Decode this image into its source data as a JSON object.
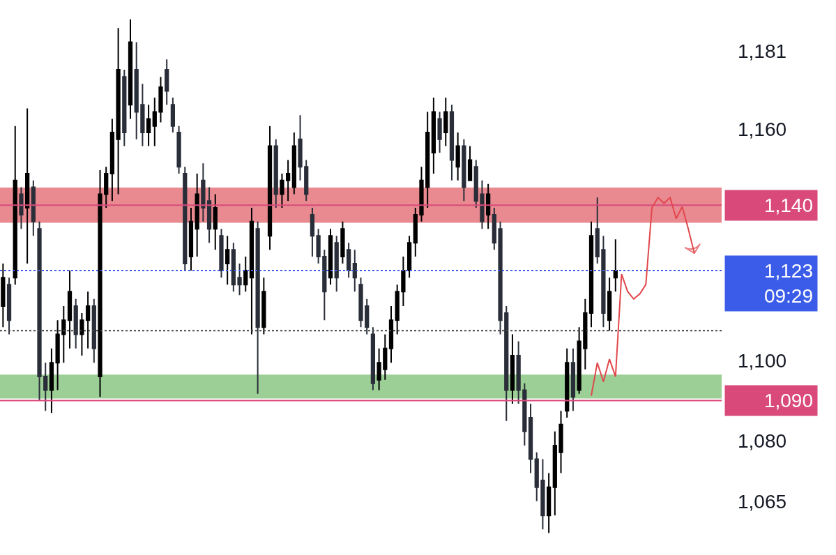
{
  "chart_data": {
    "type": "candlestick",
    "categories": [
      null,
      null,
      null,
      null,
      null,
      null,
      null,
      null,
      null,
      null,
      null,
      null,
      null,
      null,
      null,
      null,
      null,
      null,
      null,
      null,
      null,
      null,
      null,
      null,
      null,
      null,
      null,
      null,
      null,
      null,
      null,
      null,
      null,
      null,
      null,
      null,
      null,
      null,
      null,
      null,
      null,
      null,
      null,
      null,
      null,
      null,
      null,
      null,
      null,
      null,
      null,
      null,
      null,
      null,
      null,
      null,
      null,
      null,
      null,
      null,
      null,
      null,
      null,
      null,
      null,
      null,
      null,
      null,
      null,
      null,
      null,
      null,
      null,
      null,
      null,
      null,
      null,
      null,
      null,
      null,
      null,
      null,
      null,
      null,
      null,
      null,
      null,
      null,
      null,
      null,
      null,
      null,
      null,
      null,
      null,
      null,
      null,
      null,
      null,
      null,
      null,
      null,
      null,
      null,
      null,
      null,
      null,
      null,
      null,
      null,
      null,
      null,
      null,
      null,
      null,
      null,
      null,
      null,
      null
    ],
    "colors": [
      "#000000",
      "#2a2e39",
      "#000000",
      "#2a2e39",
      "#000000",
      "#2a2e39",
      "#2a2e39",
      "#2a2e39",
      "#000000",
      "#000000",
      "#000000",
      "#000000",
      "#2a2e39",
      "#000000",
      "#000000",
      "#2a2e39",
      "#000000",
      "#000000",
      "#000000",
      "#000000",
      "#2a2e39",
      "#000000",
      "#2a2e39",
      "#2a2e39",
      "#000000",
      "#000000",
      "#000000",
      "#2a2e39",
      "#2a2e39",
      "#2a2e39",
      "#2a2e39",
      "#000000",
      "#000000",
      "#2a2e39",
      "#2a2e39",
      "#000000",
      "#2a2e39",
      "#000000",
      "#2a2e39",
      "#2a2e39",
      "#000000",
      "#000000",
      "#2a2e39",
      "#000000",
      "#000000",
      "#2a2e39",
      "#000000",
      "#000000",
      "#000000",
      "#2a2e39",
      "#2a2e39",
      "#2a2e39",
      "#2a2e39",
      "#2a2e39",
      "#000000",
      "#2a2e39",
      "#000000",
      "#2a2e39",
      "#2a2e39",
      "#2a2e39",
      "#2a2e39",
      "#2a2e39",
      "#000000",
      "#000000",
      "#000000",
      "#000000",
      "#000000",
      "#000000",
      "#000000",
      "#000000",
      "#000000",
      "#000000",
      "#2a2e39",
      "#000000",
      "#2a2e39",
      "#000000",
      "#2a2e39",
      "#000000",
      "#2a2e39",
      "#2a2e39",
      "#000000",
      "#2a2e39",
      "#2a2e39",
      "#2a2e39",
      "#000000",
      "#2a2e39",
      "#2a2e39",
      "#2a2e39",
      "#2a2e39",
      "#2a2e39",
      "#000000",
      "#000000",
      "#000000",
      "#000000",
      "#2a2e39",
      "#000000",
      "#000000",
      "#000000",
      "#2a2e39",
      "#2a2e39",
      "#000000",
      "#000000",
      null,
      null,
      null,
      null,
      null,
      null,
      null,
      null,
      null,
      null,
      null,
      null,
      null,
      null,
      null,
      null,
      null
    ],
    "ohlc": [
      [
        1113.9,
        1124.8,
        1108.5,
        1121.2
      ],
      [
        1119.4,
        1121.2,
        1106.7,
        1110.3
      ],
      [
        1121.2,
        1160.9,
        1119.4,
        1146.5
      ],
      [
        1142.9,
        1144.7,
        1133.8,
        1137.5
      ],
      [
        1139.3,
        1165.6,
        1124.8,
        1148.3
      ],
      [
        1144.7,
        1146.5,
        1132.0,
        1135.7
      ],
      [
        1133.8,
        1135.7,
        1090.0,
        1096.0
      ],
      [
        1096.0,
        1099.5,
        1087.4,
        1092.6
      ],
      [
        1092.6,
        1103.1,
        1086.9,
        1099.5
      ],
      [
        1099.5,
        1110.3,
        1092.6,
        1106.7
      ],
      [
        1106.7,
        1113.9,
        1099.5,
        1110.3
      ],
      [
        1110.3,
        1123.0,
        1103.1,
        1117.6
      ],
      [
        1113.9,
        1115.7,
        1103.1,
        1106.7
      ],
      [
        1106.7,
        1112.1,
        1101.3,
        1110.3
      ],
      [
        1110.3,
        1117.6,
        1103.1,
        1113.9
      ],
      [
        1113.9,
        1115.7,
        1099.5,
        1103.1
      ],
      [
        1096.0,
        1149.2,
        1090.9,
        1142.9
      ],
      [
        1142.9,
        1150.1,
        1139.3,
        1148.3
      ],
      [
        1148.3,
        1162.8,
        1141.1,
        1159.2
      ],
      [
        1157.4,
        1187.3,
        1142.9,
        1176.0
      ],
      [
        1174.1,
        1176.0,
        1155.6,
        1159.2
      ],
      [
        1166.6,
        1189.7,
        1162.8,
        1183.5
      ],
      [
        1176.0,
        1183.5,
        1157.4,
        1164.7
      ],
      [
        1166.6,
        1172.2,
        1155.6,
        1159.2
      ],
      [
        1159.2,
        1166.6,
        1155.6,
        1162.8
      ],
      [
        1160.9,
        1168.5,
        1155.6,
        1164.7
      ],
      [
        1164.7,
        1174.1,
        1161.9,
        1171.3
      ],
      [
        1176.0,
        1178.8,
        1166.6,
        1170.3
      ],
      [
        1166.6,
        1168.5,
        1159.2,
        1160.9
      ],
      [
        1159.2,
        1160.9,
        1148.3,
        1150.1
      ],
      [
        1148.3,
        1150.1,
        1123.0,
        1124.8
      ],
      [
        1126.6,
        1139.3,
        1123.0,
        1135.7
      ],
      [
        1133.8,
        1148.3,
        1126.6,
        1142.9
      ],
      [
        1146.5,
        1151.0,
        1135.7,
        1139.3
      ],
      [
        1141.1,
        1144.7,
        1130.2,
        1133.8
      ],
      [
        1133.8,
        1142.9,
        1128.4,
        1139.3
      ],
      [
        1132.0,
        1133.8,
        1121.2,
        1123.0
      ],
      [
        1124.8,
        1132.0,
        1119.4,
        1128.4
      ],
      [
        1128.4,
        1130.2,
        1117.6,
        1119.4
      ],
      [
        1121.2,
        1124.8,
        1116.7,
        1119.4
      ],
      [
        1119.4,
        1126.6,
        1117.6,
        1123.0
      ],
      [
        1121.2,
        1139.3,
        1106.7,
        1135.7
      ],
      [
        1133.8,
        1135.7,
        1091.7,
        1108.5
      ],
      [
        1108.5,
        1121.2,
        1106.7,
        1117.6
      ],
      [
        1132.0,
        1160.9,
        1128.4,
        1155.6
      ],
      [
        1155.6,
        1157.4,
        1139.3,
        1142.9
      ],
      [
        1142.9,
        1148.3,
        1139.3,
        1146.5
      ],
      [
        1146.5,
        1151.9,
        1141.1,
        1148.3
      ],
      [
        1144.7,
        1159.2,
        1142.9,
        1155.6
      ],
      [
        1157.4,
        1163.8,
        1146.5,
        1150.1
      ],
      [
        1150.1,
        1151.9,
        1141.1,
        1142.9
      ],
      [
        1137.5,
        1139.3,
        1126.6,
        1132.0
      ],
      [
        1132.0,
        1133.8,
        1124.8,
        1126.6
      ],
      [
        1126.6,
        1128.4,
        1110.3,
        1117.6
      ],
      [
        1121.2,
        1133.8,
        1119.4,
        1132.0
      ],
      [
        1130.2,
        1132.0,
        1117.6,
        1121.2
      ],
      [
        1126.6,
        1135.7,
        1124.8,
        1133.8
      ],
      [
        1128.4,
        1130.2,
        1121.2,
        1123.0
      ],
      [
        1124.8,
        1128.4,
        1117.6,
        1121.2
      ],
      [
        1119.4,
        1121.2,
        1108.5,
        1110.3
      ],
      [
        1113.9,
        1115.7,
        1106.7,
        1108.5
      ],
      [
        1106.7,
        1108.5,
        1092.6,
        1094.3
      ],
      [
        1095.2,
        1103.1,
        1092.6,
        1099.5
      ],
      [
        1097.8,
        1106.7,
        1095.2,
        1103.1
      ],
      [
        1103.1,
        1113.9,
        1099.5,
        1110.3
      ],
      [
        1110.3,
        1119.4,
        1106.7,
        1117.6
      ],
      [
        1117.6,
        1126.6,
        1113.9,
        1123.0
      ],
      [
        1123.0,
        1132.0,
        1121.2,
        1130.2
      ],
      [
        1130.2,
        1139.3,
        1126.6,
        1137.5
      ],
      [
        1137.5,
        1150.1,
        1135.7,
        1146.5
      ],
      [
        1144.7,
        1164.7,
        1139.3,
        1159.2
      ],
      [
        1153.8,
        1168.5,
        1148.3,
        1164.7
      ],
      [
        1162.8,
        1164.7,
        1153.8,
        1157.4
      ],
      [
        1159.2,
        1168.5,
        1155.6,
        1164.7
      ],
      [
        1164.7,
        1166.6,
        1146.5,
        1151.9
      ],
      [
        1150.1,
        1159.2,
        1146.5,
        1155.6
      ],
      [
        1155.6,
        1157.4,
        1141.1,
        1144.7
      ],
      [
        1146.5,
        1155.6,
        1146.5,
        1151.9
      ],
      [
        1150.1,
        1151.9,
        1139.3,
        1141.1
      ],
      [
        1142.9,
        1146.5,
        1133.8,
        1135.7
      ],
      [
        1137.5,
        1145.6,
        1133.8,
        1142.9
      ],
      [
        1137.5,
        1139.3,
        1128.4,
        1130.2
      ],
      [
        1133.8,
        1135.7,
        1106.7,
        1110.3
      ],
      [
        1112.1,
        1113.9,
        1084.9,
        1092.6
      ],
      [
        1092.6,
        1106.7,
        1089.2,
        1101.3
      ],
      [
        1101.3,
        1104.9,
        1089.2,
        1092.6
      ],
      [
        1092.6,
        1094.3,
        1078.8,
        1082.3
      ],
      [
        1085.7,
        1089.2,
        1072.0,
        1075.4
      ],
      [
        1075.4,
        1077.1,
        1065.1,
        1068.5
      ],
      [
        1070.2,
        1075.4,
        1058.2,
        1061.6
      ],
      [
        1061.6,
        1072.0,
        1057.3,
        1068.5
      ],
      [
        1068.5,
        1082.3,
        1061.6,
        1078.8
      ],
      [
        1077.1,
        1087.4,
        1072.0,
        1084.0
      ],
      [
        1087.4,
        1103.1,
        1085.7,
        1099.5
      ],
      [
        1099.5,
        1103.1,
        1087.4,
        1090.9
      ],
      [
        1092.6,
        1108.5,
        1091.7,
        1104.9
      ],
      [
        1103.1,
        1115.7,
        1097.8,
        1112.1
      ],
      [
        1112.1,
        1135.7,
        1108.5,
        1132.0
      ],
      [
        1133.8,
        1142.0,
        1124.8,
        1126.6
      ],
      [
        1128.4,
        1132.0,
        1108.5,
        1112.1
      ],
      [
        1110.3,
        1121.2,
        1107.6,
        1117.6
      ],
      [
        1121.2,
        1131.1,
        1117.6,
        1123.0
      ],
      null,
      null,
      null,
      null,
      null,
      null,
      null,
      null,
      null,
      null,
      null,
      null,
      null,
      null,
      null,
      null,
      null
    ],
    "series": [
      {
        "type": "line",
        "color": "#e0474c",
        "values": [
          null,
          null,
          null,
          null,
          null,
          null,
          null,
          null,
          null,
          null,
          null,
          null,
          null,
          null,
          null,
          null,
          null,
          null,
          null,
          null,
          null,
          null,
          null,
          null,
          null,
          null,
          null,
          null,
          null,
          null,
          null,
          null,
          null,
          null,
          null,
          null,
          null,
          null,
          null,
          null,
          null,
          null,
          null,
          null,
          null,
          null,
          null,
          null,
          null,
          null,
          null,
          null,
          null,
          null,
          null,
          null,
          null,
          null,
          null,
          null,
          null,
          null,
          null,
          null,
          null,
          null,
          null,
          null,
          null,
          null,
          null,
          null,
          null,
          null,
          null,
          null,
          null,
          null,
          null,
          null,
          null,
          null,
          null,
          null,
          null,
          null,
          null,
          null,
          null,
          null,
          null,
          null,
          null,
          null,
          null,
          null,
          null,
          1091.2,
          1099.5,
          1094.7,
          1100.4,
          1096.0,
          1122.1,
          1117.6,
          1115.7,
          1117.0,
          1119.4,
          1139.3,
          1142.0,
          1140.5,
          1142.0,
          1136.5,
          1139.6,
          1133.8,
          1127.5,
          null,
          null,
          null,
          null
        ]
      }
    ],
    "log": true,
    "ylim": [
      1052,
      1195
    ],
    "yticks": [
      {
        "value": 1181,
        "label": "1,181"
      },
      {
        "value": 1160,
        "label": "1,160"
      },
      {
        "value": 1100,
        "label": "1,100"
      },
      {
        "value": 1080,
        "label": "1,080"
      },
      {
        "value": 1065,
        "label": "1,065"
      }
    ],
    "tick_labels": "y",
    "bands": [
      {
        "axis": "y",
        "from": 1135.4,
        "to": 1144.6,
        "color": "#e98a91"
      },
      {
        "axis": "y",
        "from": 1090.5,
        "to": 1096.5,
        "color": "#9ccf96"
      }
    ],
    "ref_lines": [
      {
        "axis": "y",
        "value": 1140,
        "label": "1,140",
        "color": "#d94a7b",
        "line_style": "solid"
      },
      {
        "axis": "y",
        "value": 1090,
        "label": "1,090",
        "color": "#d94a7b",
        "line_style": "solid"
      },
      {
        "axis": "y",
        "value": 1123,
        "label": "1,123\n09:29",
        "color": "#3b5ce8",
        "line_style": "dotted"
      },
      {
        "axis": "y",
        "value": 1107.6,
        "color": "#444444",
        "line_style": "dotted"
      }
    ]
  }
}
